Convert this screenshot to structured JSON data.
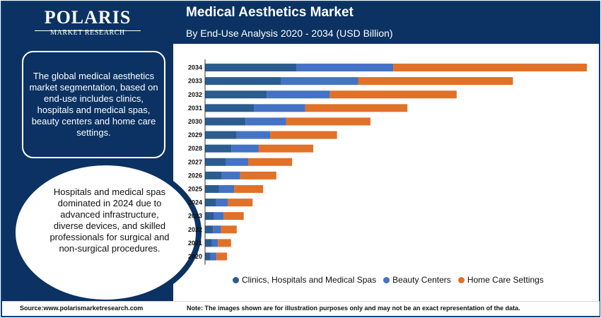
{
  "brand": {
    "name": "POLARIS",
    "tagline": "MARKET RESEARCH"
  },
  "header": {
    "title": "Medical Aesthetics Market",
    "subtitle": "By End-Use Analysis 2020 - 2034 (USD Billion)"
  },
  "sidebar": {
    "summary": "The global medical aesthetics market segmentation, based on end-use includes clinics, hospitals and medical spas, beauty centers and home care settings.",
    "highlight": "Hospitals and medical spas dominated in 2024 due to advanced infrastructure, diverse devices, and skilled professionals for surgical and non-surgical procedures."
  },
  "footer": {
    "source": "Source:www.polarismarketresearch.com",
    "note": "Note: The images shown are for illustration purposes only and may not be an exact representation of the data."
  },
  "colors": {
    "navy": "#0b3262",
    "clinics": "#2c5c8f",
    "beauty": "#4472c4",
    "home": "#e07128"
  },
  "chart_data": {
    "type": "bar",
    "orientation": "horizontal",
    "stacked": true,
    "title": "Medical Aesthetics Market",
    "subtitle": "By End-Use Analysis 2020 - 2034 (USD Billion)",
    "categories": [
      "2034",
      "2033",
      "2032",
      "2031",
      "2030",
      "2029",
      "2028",
      "2027",
      "2026",
      "2025",
      "2024",
      "2023",
      "2022",
      "2021",
      "2020"
    ],
    "series": [
      {
        "name": "Clinics, Hospitals and Medical Spas",
        "color": "#2c5c8f",
        "values": [
          5.2,
          4.3,
          3.5,
          2.8,
          2.3,
          1.8,
          1.5,
          1.2,
          0.95,
          0.8,
          0.62,
          0.5,
          0.45,
          0.38,
          0.3
        ]
      },
      {
        "name": "Beauty Centers",
        "color": "#4472c4",
        "values": [
          5.5,
          4.4,
          3.6,
          2.9,
          2.3,
          1.9,
          1.55,
          1.25,
          1.05,
          0.85,
          0.68,
          0.55,
          0.45,
          0.35,
          0.35
        ]
      },
      {
        "name": "Home Care Settings",
        "color": "#e07128",
        "values": [
          11.0,
          8.8,
          7.2,
          5.8,
          4.8,
          3.8,
          3.1,
          2.5,
          2.05,
          1.65,
          1.4,
          1.15,
          0.9,
          0.75,
          0.6
        ]
      }
    ],
    "grid": false,
    "legend": "bottom"
  }
}
